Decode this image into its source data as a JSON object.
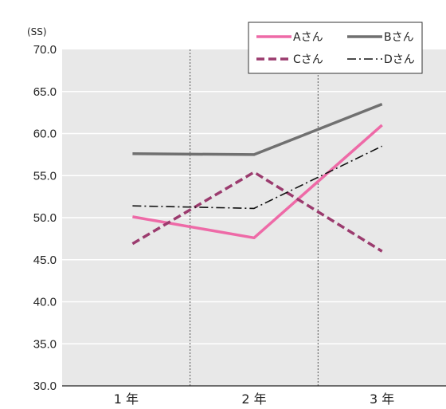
{
  "chart_data": {
    "type": "line",
    "unit_label": "(SS)",
    "categories": [
      "1 年",
      "2 年",
      "3 年"
    ],
    "ylim": [
      30.0,
      70.0
    ],
    "yticks": [
      "30.0",
      "35.0",
      "40.0",
      "45.0",
      "50.0",
      "55.0",
      "60.0",
      "65.0",
      "70.0"
    ],
    "grid": true,
    "legend_position": "top-right",
    "series": [
      {
        "name": "Aさん",
        "x": [
          0.05,
          1.0,
          2.0
        ],
        "values": [
          50.1,
          47.6,
          61.0
        ],
        "color": "#ee6aa7",
        "style": "solid"
      },
      {
        "name": "Bさん",
        "x": [
          0.05,
          1.0,
          2.0
        ],
        "values": [
          57.6,
          57.5,
          63.5
        ],
        "color": "#707070",
        "style": "solid"
      },
      {
        "name": "Cさん",
        "x": [
          0.05,
          1.0,
          2.0
        ],
        "values": [
          46.9,
          55.4,
          46.0
        ],
        "color": "#9b3b6e",
        "style": "dashed"
      },
      {
        "name": "Dさん",
        "x": [
          0.05,
          1.0,
          2.0
        ],
        "values": [
          51.4,
          51.1,
          58.5
        ],
        "color": "#111111",
        "style": "dashdot"
      }
    ]
  }
}
